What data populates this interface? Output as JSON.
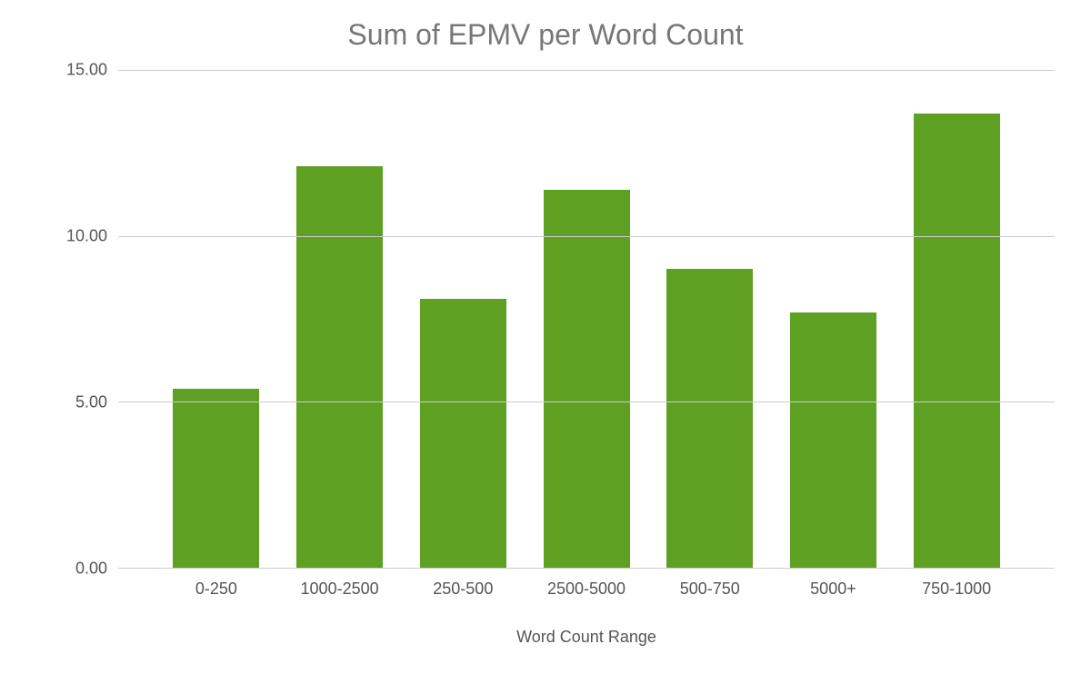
{
  "chart": {
    "type": "bar",
    "title": "Sum of EPMV per Word Count",
    "title_fontsize": 32,
    "title_color": "#777777",
    "xlabel": "Word Count Range",
    "xlabel_fontsize": 18,
    "xlabel_color": "#555555",
    "categories": [
      "0-250",
      "1000-2500",
      "250-500",
      "2500-5000",
      "500-750",
      "5000+",
      "750-1000"
    ],
    "values": [
      5.4,
      12.1,
      8.1,
      11.4,
      9.0,
      7.7,
      13.7
    ],
    "bar_color": "#5ea022",
    "background_color": "#ffffff",
    "grid_color": "#cccccc",
    "axis_line_color": "#333333",
    "tick_label_color": "#555555",
    "tick_label_fontsize": 18,
    "ylim": [
      0,
      15
    ],
    "yticks": [
      0,
      5,
      10,
      15
    ],
    "ytick_labels": [
      "0.00",
      "5.00",
      "10.00",
      "15.00"
    ],
    "bar_width": 0.7
  }
}
